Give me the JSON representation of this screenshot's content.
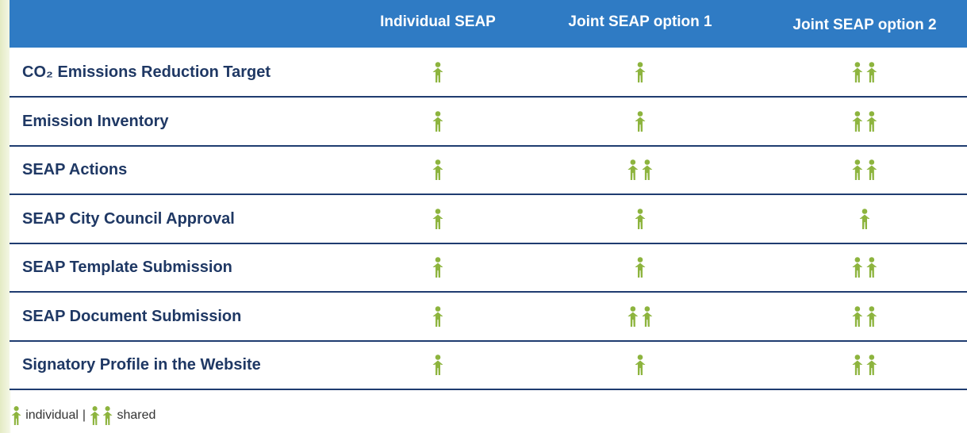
{
  "table": {
    "header": [
      "Individual SEAP",
      "Joint SEAP option 1",
      "Joint SEAP option 2"
    ],
    "rows": [
      {
        "label": "CO₂ Emissions Reduction Target",
        "cells": [
          1,
          1,
          2
        ]
      },
      {
        "label": "Emission Inventory",
        "cells": [
          1,
          1,
          2
        ]
      },
      {
        "label": "SEAP Actions",
        "cells": [
          1,
          2,
          2
        ]
      },
      {
        "label": "SEAP City Council Approval",
        "cells": [
          1,
          1,
          1
        ]
      },
      {
        "label": "SEAP Template Submission",
        "cells": [
          1,
          1,
          2
        ]
      },
      {
        "label": "SEAP Document Submission",
        "cells": [
          1,
          2,
          2
        ]
      },
      {
        "label": "Signatory Profile in the Website",
        "cells": [
          1,
          1,
          2
        ]
      }
    ]
  },
  "legend": {
    "items": [
      {
        "count": 1,
        "label": "individual"
      },
      {
        "count": 2,
        "label": "shared"
      }
    ],
    "separator": "|"
  }
}
